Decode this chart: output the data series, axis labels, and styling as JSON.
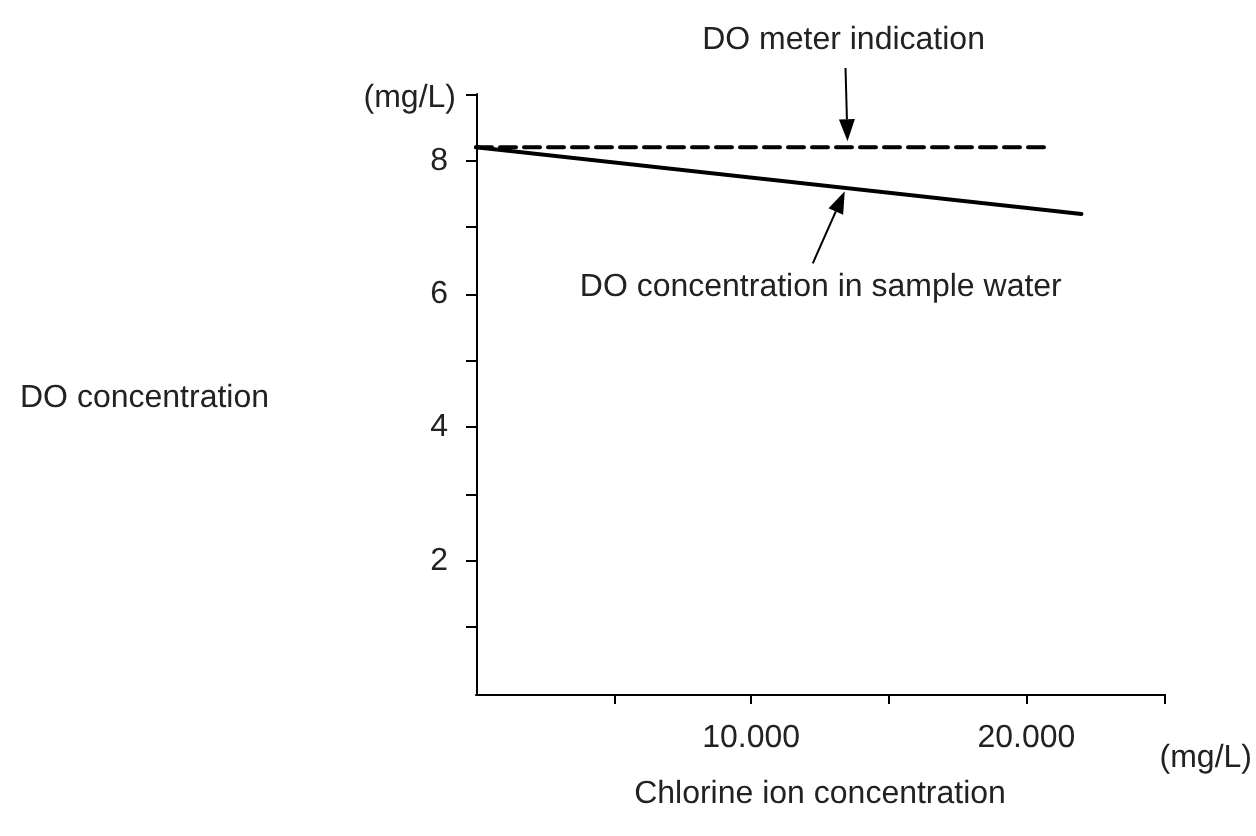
{
  "chart_data": {
    "type": "line",
    "xlabel": "Chlorine ion concentration",
    "annotations": [
      "(mg/L)",
      "(mg/L)",
      "DO concentration",
      {
        "text": "DO meter indication",
        "x": 13500,
        "y": 8.2
      },
      {
        "text": "DO concentration in sample water",
        "x": 13400,
        "y": 7.6
      }
    ],
    "series": [
      {
        "color": "#000000",
        "line_style": "dashed",
        "x": [
          0,
          20700
        ],
        "values": [
          8.2,
          8.2
        ]
      },
      {
        "color": "#000000",
        "line_style": "solid",
        "x": [
          0,
          22000
        ],
        "values": [
          8.2,
          7.2
        ]
      }
    ],
    "xlim": [
      0,
      25000
    ],
    "xticks": [
      {
        "value": 5000,
        "label": null
      },
      {
        "value": 10000,
        "label": "10.000"
      },
      {
        "value": 15000,
        "label": null
      },
      {
        "value": 20000,
        "label": "20.000"
      },
      {
        "value": 25000,
        "label": null
      }
    ],
    "ylim": [
      0,
      9
    ],
    "yticks": [
      {
        "value": 1,
        "label": null
      },
      2,
      {
        "value": 3,
        "label": null
      },
      4,
      {
        "value": 5,
        "label": null
      },
      6,
      {
        "value": 7,
        "label": null
      },
      8,
      {
        "value": 9,
        "label": null
      }
    ],
    "grid": false,
    "marker": "none"
  }
}
